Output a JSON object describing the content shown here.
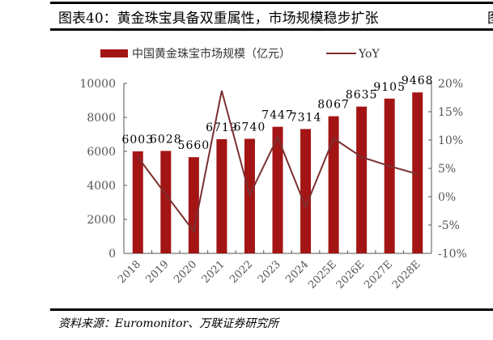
{
  "title": "图表40：黄金珠宝具备双重属性，市场规模稳步扩张",
  "cut_char": "图",
  "source": "资料来源：Euromonitor、万联证券研究所",
  "colors": {
    "bar": "#a31515",
    "line": "#7b3030",
    "axis": "#555555"
  },
  "chart_data": {
    "type": "bar+line",
    "categories": [
      "2018",
      "2019",
      "2020",
      "2021",
      "2022",
      "2023",
      "2024",
      "2025E",
      "2026E",
      "2027E",
      "2028E"
    ],
    "series": [
      {
        "name": "中国黄金珠宝市场规模（亿元）",
        "type": "bar",
        "axis": "left",
        "values": [
          6003,
          6028,
          5660,
          6719,
          6740,
          7447,
          7314,
          8067,
          8635,
          9105,
          9468
        ]
      },
      {
        "name": "YoY",
        "type": "line",
        "axis": "right",
        "values": [
          7.0,
          0.4,
          -6.1,
          18.7,
          0.3,
          10.5,
          -1.8,
          10.3,
          7.0,
          5.4,
          4.0
        ]
      }
    ],
    "left_axis": {
      "range": [
        0,
        10000
      ],
      "ticks": [
        "0",
        "2000",
        "4000",
        "6000",
        "8000",
        "10000"
      ]
    },
    "right_axis": {
      "range": [
        -10,
        20
      ],
      "ticks": [
        "-10%",
        "-5%",
        "0%",
        "5%",
        "10%",
        "15%",
        "20%"
      ]
    },
    "legend_position": "top",
    "grid": false
  }
}
